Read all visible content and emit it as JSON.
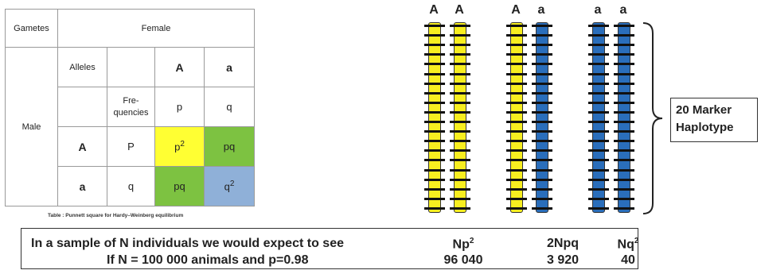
{
  "table": {
    "gametes": "Gametes",
    "female": "Female",
    "male": "Male",
    "alleles": "Alleles",
    "A_upper": "A",
    "a_lower": "a",
    "frequencies": "Fre-\nquencies",
    "p": "p",
    "q": "q",
    "row_A": "A",
    "row_A_freq": "P",
    "p2_base": "p",
    "p2_exp": "2",
    "pq": "pq",
    "row_a": "a",
    "row_a_freq": "q",
    "q2_base": "q",
    "q2_exp": "2",
    "caption": "Table : Punnett square for Hardy–Weinberg equilibrium"
  },
  "chromosomes": {
    "alleles": [
      "A",
      "A",
      "A",
      "a",
      "a",
      "a"
    ],
    "colors": [
      "#f7ee20",
      "#f7ee20",
      "#f7ee20",
      "#2a6ebb",
      "#2a6ebb",
      "#2a6ebb"
    ],
    "marker_count": 20
  },
  "haplotype_label_line1": "20 Marker",
  "haplotype_label_line2": "Haplotype",
  "summary": {
    "line1": "In a sample of N individuals we would expect to see",
    "line2": "If N = 100 000 animals and p=0.98",
    "col1_head_base": "Np",
    "col1_head_exp": "2",
    "col2_head": "2Npq",
    "col3_head_base": "Nq",
    "col3_head_exp": "2",
    "col1_value": "96 040",
    "col2_value": "3 920",
    "col3_value": "40"
  }
}
